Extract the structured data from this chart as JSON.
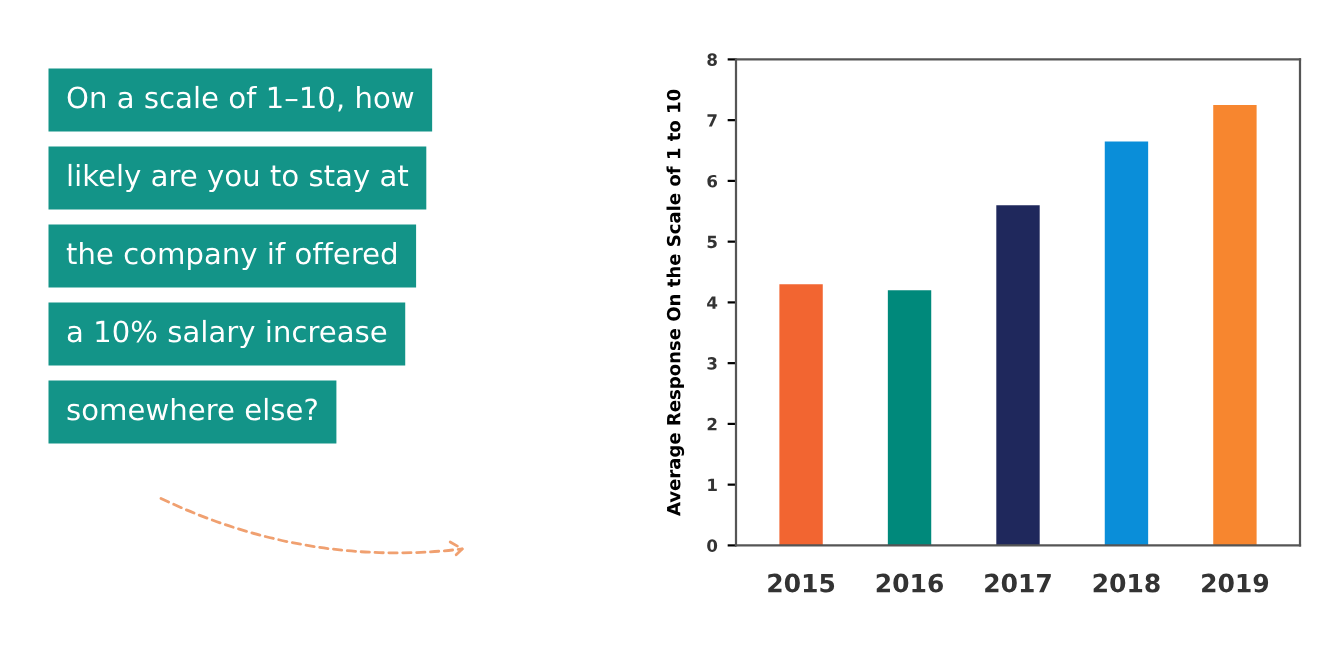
{
  "chart_data": {
    "type": "bar",
    "title": "On a scale of 1–10, how\nlikely are you to stay at\nthe company if offered\na 10% salary increase\nsomewhere else?",
    "ylabel": "Average Response On the Scale of 1 to 10",
    "categories": [
      "2015",
      "2016",
      "2017",
      "2018",
      "2019"
    ],
    "values": [
      4.3,
      4.2,
      5.6,
      6.65,
      7.25
    ],
    "colors": [
      "#f26531",
      "#00897b",
      "#1f285c",
      "#0a8ed9",
      "#f7862f"
    ],
    "ylim": [
      0,
      8
    ],
    "yticks": [
      0,
      1,
      2,
      3,
      4,
      5,
      6,
      7,
      8
    ],
    "grid": false
  }
}
